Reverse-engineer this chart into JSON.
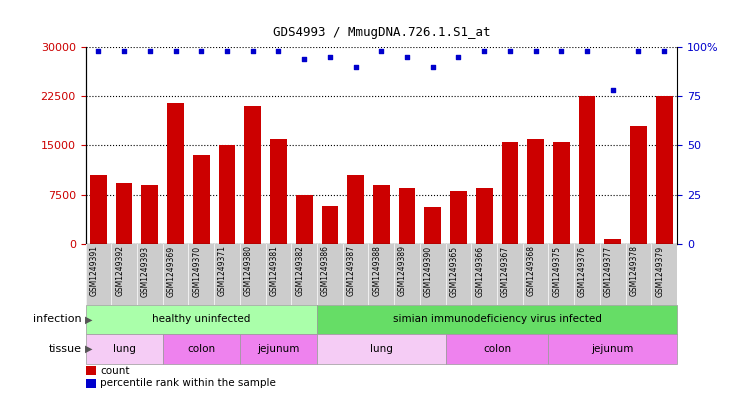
{
  "title": "GDS4993 / MmugDNA.726.1.S1_at",
  "samples": [
    "GSM1249391",
    "GSM1249392",
    "GSM1249393",
    "GSM1249369",
    "GSM1249370",
    "GSM1249371",
    "GSM1249380",
    "GSM1249381",
    "GSM1249382",
    "GSM1249386",
    "GSM1249387",
    "GSM1249388",
    "GSM1249389",
    "GSM1249390",
    "GSM1249365",
    "GSM1249366",
    "GSM1249367",
    "GSM1249368",
    "GSM1249375",
    "GSM1249376",
    "GSM1249377",
    "GSM1249378",
    "GSM1249379"
  ],
  "counts": [
    10500,
    9200,
    9000,
    21500,
    13500,
    15000,
    21000,
    16000,
    7500,
    5800,
    10500,
    9000,
    8500,
    5600,
    8000,
    8500,
    15500,
    16000,
    15500,
    22500,
    700,
    18000,
    22500
  ],
  "percentiles": [
    98,
    98,
    98,
    98,
    98,
    98,
    98,
    98,
    94,
    95,
    90,
    98,
    95,
    90,
    95,
    98,
    98,
    98,
    98,
    98,
    78,
    98,
    98
  ],
  "bar_color": "#cc0000",
  "dot_color": "#0000cc",
  "ylim_left": [
    0,
    30000
  ],
  "yticks_left": [
    0,
    7500,
    15000,
    22500,
    30000
  ],
  "ylim_right": [
    0,
    100
  ],
  "yticks_right": [
    0,
    25,
    50,
    75,
    100
  ],
  "inf_groups": [
    {
      "label": "healthy uninfected",
      "start": 0,
      "end": 9,
      "color": "#aaffaa"
    },
    {
      "label": "simian immunodeficiency virus infected",
      "start": 9,
      "end": 23,
      "color": "#66dd66"
    }
  ],
  "tis_groups": [
    {
      "label": "lung",
      "start": 0,
      "end": 3,
      "color": "#f5ccf5"
    },
    {
      "label": "colon",
      "start": 3,
      "end": 6,
      "color": "#ee82ee"
    },
    {
      "label": "jejunum",
      "start": 6,
      "end": 9,
      "color": "#ee82ee"
    },
    {
      "label": "lung",
      "start": 9,
      "end": 14,
      "color": "#f5ccf5"
    },
    {
      "label": "colon",
      "start": 14,
      "end": 18,
      "color": "#ee82ee"
    },
    {
      "label": "jejunum",
      "start": 18,
      "end": 23,
      "color": "#ee82ee"
    }
  ],
  "xtick_bg": "#cccccc"
}
